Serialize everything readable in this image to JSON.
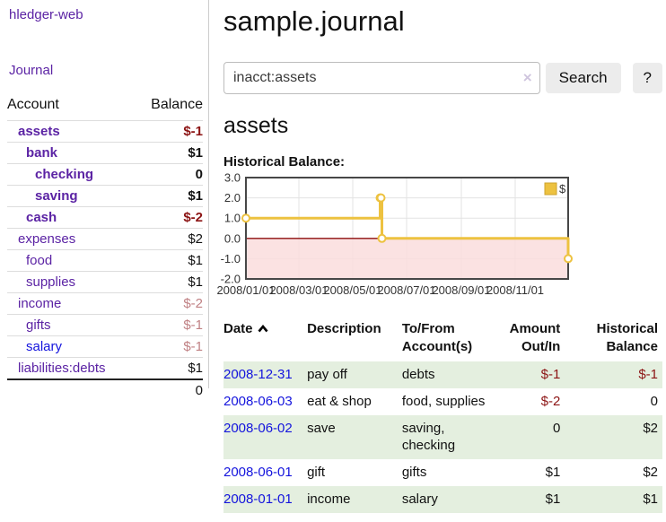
{
  "colors": {
    "link_purple": "#5b23a4",
    "link_blue": "#1414dd",
    "negative_strong": "#8c1414",
    "negative_soft": "#c08184",
    "row_stripe_green": "#e4efdf",
    "button_gray": "#ececec",
    "series_gold": "#edc240",
    "negative_region_pink": "#fadddd",
    "zero_line_red": "#8c0d0d",
    "chart_border": "#474747"
  },
  "sidebar": {
    "app_title": "hledger-web",
    "journal_link": "Journal",
    "accounts": {
      "col_account": "Account",
      "col_balance": "Balance",
      "rows": [
        {
          "name": "assets",
          "depth": 1,
          "bold": true,
          "balance": "$-1",
          "neg": "strong"
        },
        {
          "name": "bank",
          "depth": 2,
          "bold": true,
          "balance": "$1"
        },
        {
          "name": "checking",
          "depth": 3,
          "bold": true,
          "balance": "0"
        },
        {
          "name": "saving",
          "depth": 3,
          "bold": true,
          "balance": "$1"
        },
        {
          "name": "cash",
          "depth": 2,
          "bold": true,
          "balance": "$-2",
          "neg": "strong"
        },
        {
          "name": "expenses",
          "depth": 1,
          "bold": false,
          "balance": "$2"
        },
        {
          "name": "food",
          "depth": 2,
          "bold": false,
          "balance": "$1"
        },
        {
          "name": "supplies",
          "depth": 2,
          "bold": false,
          "balance": "$1"
        },
        {
          "name": "income",
          "depth": 1,
          "bold": false,
          "balance": "$-2",
          "neg": "soft"
        },
        {
          "name": "gifts",
          "depth": 2,
          "bold": false,
          "balance": "$-1",
          "neg": "soft"
        },
        {
          "name": "salary",
          "depth": 2,
          "bold": false,
          "balance": "$-1",
          "neg": "soft",
          "link": "unvisited"
        },
        {
          "name": "liabilities:debts",
          "depth": 1,
          "bold": false,
          "balance": "$1"
        }
      ],
      "total": "0"
    }
  },
  "header": {
    "title": "sample.journal"
  },
  "search": {
    "query": "inacct:assets",
    "clear_icon": "×",
    "button_label": "Search",
    "help_label": "?"
  },
  "account_page": {
    "title": "assets",
    "chart_label": "Historical Balance:"
  },
  "chart_data": {
    "type": "line",
    "step": true,
    "title": "Historical Balance",
    "series": [
      {
        "name": "$",
        "color": "#edc240",
        "points": [
          [
            "2008-01-01",
            1
          ],
          [
            "2008-06-01",
            2
          ],
          [
            "2008-06-02",
            2
          ],
          [
            "2008-06-03",
            0
          ],
          [
            "2008-12-31",
            -1
          ]
        ]
      }
    ],
    "xlim": [
      "2008-01-01",
      "2008-12-31"
    ],
    "ylim": [
      -2,
      3
    ],
    "x_ticks": [
      "2008/01/01",
      "2008/03/01",
      "2008/05/01",
      "2008/07/01",
      "2008/09/01",
      "2008/11/01"
    ],
    "y_ticks": [
      3.0,
      2.0,
      1.0,
      0.0,
      -1.0,
      -2.0
    ],
    "grid": true,
    "legend": {
      "label": "$",
      "position": "top-right"
    },
    "negative_region_shaded": true
  },
  "transactions": {
    "columns": [
      {
        "label": "Date",
        "sorted": "asc"
      },
      {
        "label": "Description"
      },
      {
        "label": "To/From Account(s)"
      },
      {
        "label": "Amount Out/In",
        "align": "right"
      },
      {
        "label": "Historical Balance",
        "align": "right"
      }
    ],
    "rows": [
      {
        "date": "2008-12-31",
        "description": "pay off",
        "accounts": "debts",
        "amount": "$-1",
        "amount_neg": true,
        "balance": "$-1",
        "balance_neg": true
      },
      {
        "date": "2008-06-03",
        "description": "eat & shop",
        "accounts": "food, supplies",
        "amount": "$-2",
        "amount_neg": true,
        "balance": "0",
        "balance_neg": false
      },
      {
        "date": "2008-06-02",
        "description": "save",
        "accounts": "saving, checking",
        "amount": "0",
        "amount_neg": false,
        "balance": "$2",
        "balance_neg": false
      },
      {
        "date": "2008-06-01",
        "description": "gift",
        "accounts": "gifts",
        "amount": "$1",
        "amount_neg": false,
        "balance": "$2",
        "balance_neg": false
      },
      {
        "date": "2008-01-01",
        "description": "income",
        "accounts": "salary",
        "amount": "$1",
        "amount_neg": false,
        "balance": "$1",
        "balance_neg": false
      }
    ]
  }
}
